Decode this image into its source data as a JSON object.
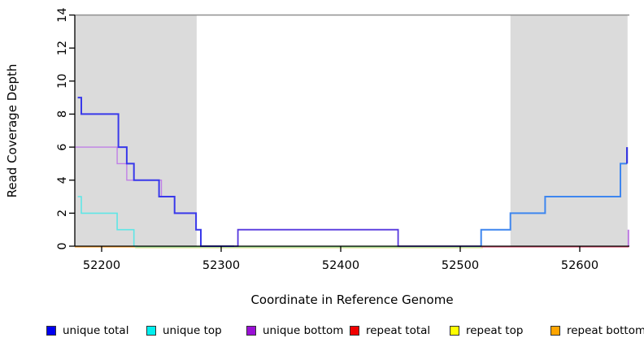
{
  "chart_data": {
    "type": "line",
    "subtype": "step-coverage-plot",
    "title": "",
    "xlabel": "Coordinate in Reference Genome",
    "ylabel": "Read Coverage Depth",
    "xlim": [
      52177.5,
      52641.5
    ],
    "ylim": [
      0,
      14
    ],
    "x_ticks": [
      "52200",
      "52300",
      "52400",
      "52500",
      "52600"
    ],
    "x_tick_values": [
      52200,
      52300,
      52400,
      52500,
      52600
    ],
    "y_ticks": [
      "0",
      "2",
      "4",
      "6",
      "8",
      "10",
      "12",
      "14"
    ],
    "y_tick_values": [
      0,
      2,
      4,
      6,
      8,
      10,
      12,
      14
    ],
    "grid": false,
    "legend_position": "bottom",
    "shade_color": "#DBDBDB",
    "shaded_regions": [
      {
        "x0": 52177.5,
        "x1": 52279.5
      },
      {
        "x0": 52542.0,
        "x1": 52640.0
      }
    ],
    "threshold_line": {
      "y": 14,
      "color": "#8F8F8F"
    },
    "series": [
      {
        "name": "unique total",
        "color": "#0000EE",
        "step_points": [
          [
            52180,
            9
          ],
          [
            52183,
            8
          ],
          [
            52214,
            6
          ],
          [
            52221,
            5
          ],
          [
            52227,
            4
          ],
          [
            52248,
            3
          ],
          [
            52261,
            2
          ],
          [
            52279,
            1
          ],
          [
            52283,
            0
          ],
          [
            52314,
            1
          ],
          [
            52448,
            0
          ],
          [
            52517,
            1
          ],
          [
            52542,
            2
          ],
          [
            52571,
            3
          ],
          [
            52634,
            5
          ],
          [
            52640,
            6
          ]
        ]
      },
      {
        "name": "unique top",
        "color": "#00EEEE",
        "step_points": [
          [
            52180,
            3
          ],
          [
            52183,
            2
          ],
          [
            52213,
            1
          ],
          [
            52227,
            0
          ],
          [
            52517,
            1
          ],
          [
            52542,
            2
          ],
          [
            52571,
            3
          ],
          [
            52634,
            5
          ]
        ]
      },
      {
        "name": "unique bottom",
        "color": "#9400D3",
        "step_points": [
          [
            52177,
            6
          ],
          [
            52213,
            5
          ],
          [
            52221,
            4
          ],
          [
            52250,
            3
          ],
          [
            52261,
            2
          ],
          [
            52279,
            1
          ],
          [
            52283,
            0
          ],
          [
            52314,
            1
          ],
          [
            52448,
            0
          ],
          [
            52640,
            1
          ]
        ]
      },
      {
        "name": "repeat total",
        "color": "#EE0000",
        "step_points": [
          [
            52177,
            0
          ]
        ]
      },
      {
        "name": "repeat top",
        "color": "#FFFF00",
        "step_points": [
          [
            52177,
            0
          ]
        ]
      },
      {
        "name": "repeat bottom",
        "color": "#FFA500",
        "step_points": [
          [
            52177,
            0
          ]
        ]
      }
    ],
    "render_lines": [
      {
        "name": "threshold-line",
        "color": "#8F8F8F",
        "w": 1.5,
        "dy": 0,
        "pts": [
          [
            52177.5,
            14
          ],
          [
            52641.5,
            14
          ]
        ]
      },
      {
        "name": "repeat-top-line",
        "color": "#EDE6A8",
        "w": 1.2,
        "dy": 2.2,
        "pts": [
          [
            52228,
            0
          ],
          [
            52519,
            0
          ]
        ]
      },
      {
        "name": "overlap-top-zero",
        "color": "#7BD37B",
        "w": 1.4,
        "dy": 0.8,
        "pts": [
          [
            52228,
            0
          ],
          [
            52520,
            0
          ]
        ]
      },
      {
        "name": "repeat-bottom-line",
        "color": "#FF9C1E",
        "w": 2.0,
        "dy": 0.5,
        "pts": [
          [
            52177.5,
            0
          ],
          [
            52228,
            0
          ]
        ]
      },
      {
        "name": "repeat-total-line",
        "color": "#DB4767",
        "w": 1.6,
        "dy": 0.7,
        "pts": [
          [
            52517.5,
            0
          ],
          [
            52641,
            0
          ]
        ]
      },
      {
        "name": "unique-bottom-left",
        "color": "#C07FE6",
        "w": 1.4,
        "dy": 0,
        "pts": [
          [
            52177.5,
            6
          ],
          [
            52213,
            6
          ],
          [
            52213,
            5
          ],
          [
            52221,
            5
          ],
          [
            52221,
            4
          ],
          [
            52250,
            4
          ],
          [
            52250,
            3
          ],
          [
            52261,
            3
          ],
          [
            52261,
            2
          ],
          [
            52279,
            2
          ],
          [
            52279,
            1
          ],
          [
            52283,
            1
          ],
          [
            52283,
            0
          ],
          [
            52311,
            0
          ]
        ]
      },
      {
        "name": "unique-total-left",
        "color": "#3939EA",
        "w": 2.0,
        "dy": 0,
        "pts": [
          [
            52180,
            9
          ],
          [
            52183,
            9
          ],
          [
            52183,
            8
          ],
          [
            52214,
            8
          ],
          [
            52214,
            6
          ],
          [
            52221,
            6
          ],
          [
            52221,
            5
          ],
          [
            52227,
            5
          ],
          [
            52227,
            4
          ],
          [
            52248,
            4
          ],
          [
            52248,
            3
          ],
          [
            52261,
            3
          ],
          [
            52261,
            2
          ],
          [
            52279,
            2
          ],
          [
            52279,
            1
          ],
          [
            52283,
            1
          ],
          [
            52283,
            0
          ],
          [
            52311,
            0
          ]
        ]
      },
      {
        "name": "overlap-middle-one",
        "color": "#5638DE",
        "w": 1.8,
        "dy": 0,
        "pts": [
          [
            52311,
            0
          ],
          [
            52314,
            0
          ],
          [
            52314,
            1
          ],
          [
            52448,
            1
          ],
          [
            52448,
            0
          ],
          [
            52517.5,
            0
          ]
        ]
      },
      {
        "name": "unique-top-left",
        "color": "#5FE6E6",
        "w": 1.6,
        "dy": 0,
        "pts": [
          [
            52180,
            3
          ],
          [
            52183,
            3
          ],
          [
            52183,
            2
          ],
          [
            52213,
            2
          ],
          [
            52213,
            1
          ],
          [
            52227,
            1
          ],
          [
            52227,
            0
          ],
          [
            52230,
            0
          ]
        ]
      },
      {
        "name": "overlap-right-rise",
        "color": "#3E86EF",
        "w": 2.0,
        "dy": 0,
        "pts": [
          [
            52517.5,
            0
          ],
          [
            52517.5,
            1
          ],
          [
            52542,
            1
          ],
          [
            52542,
            2
          ],
          [
            52571,
            2
          ],
          [
            52571,
            3
          ],
          [
            52634,
            3
          ],
          [
            52634,
            5
          ],
          [
            52639.5,
            5
          ]
        ]
      },
      {
        "name": "unique-total-end",
        "color": "#3636DF",
        "w": 2.2,
        "dy": 0,
        "pts": [
          [
            52639.5,
            5
          ],
          [
            52639.5,
            6
          ]
        ]
      },
      {
        "name": "unique-bottom-end",
        "color": "#BB76DF",
        "w": 2.0,
        "dy": 0,
        "pts": [
          [
            52640.7,
            0
          ],
          [
            52640.7,
            1
          ]
        ]
      }
    ]
  },
  "legend": {
    "items": [
      {
        "label": "unique total",
        "color": "#0000F0"
      },
      {
        "label": "unique top",
        "color": "#00EFEF"
      },
      {
        "label": "unique bottom",
        "color": "#9A10D6"
      },
      {
        "label": "repeat total",
        "color": "#F20000"
      },
      {
        "label": "repeat top",
        "color": "#FFFF00"
      },
      {
        "label": "repeat bottom",
        "color": "#FFA500"
      }
    ]
  }
}
